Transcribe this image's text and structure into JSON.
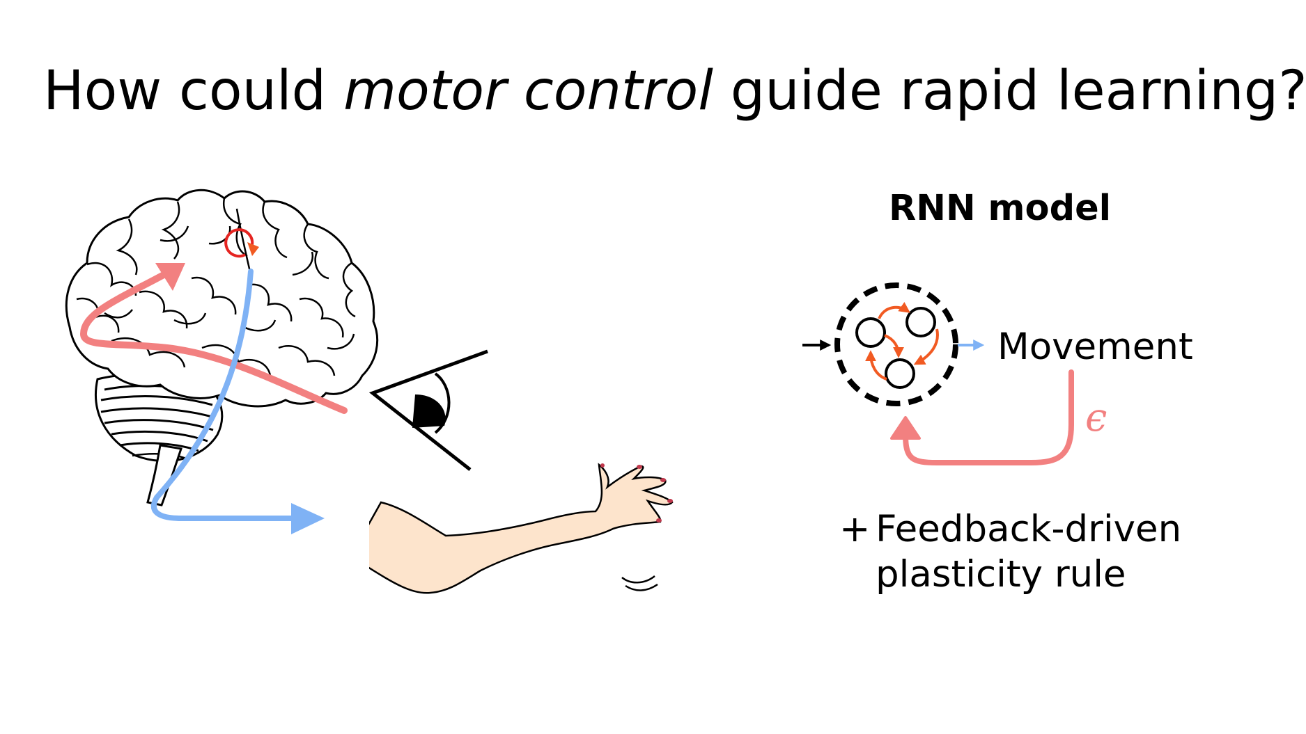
{
  "title": {
    "before": "How could ",
    "emphasis": "motor control",
    "after": " guide rapid learning?"
  },
  "rnn": {
    "heading": "RNN model",
    "output_label": "Movement",
    "error_symbol": "ϵ",
    "plus": "+",
    "rule_line1": "Feedback-driven",
    "rule_line2": "plasticity rule"
  },
  "colors": {
    "feedback_red": "#f28080",
    "motor_blue": "#7fb2f5",
    "recurrent_orange": "#f15a22",
    "loop_red": "#e52421",
    "skin": "#fde4cc"
  }
}
